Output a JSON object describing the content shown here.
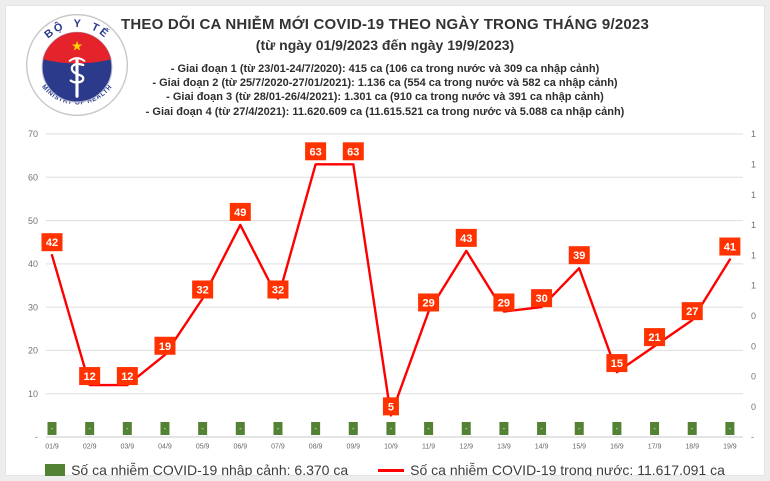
{
  "header": {
    "title": "THEO DÕI CA NHIỄM MỚI COVID-19 THEO NGÀY TRONG THÁNG 9/2023",
    "subtitle": "(từ ngày 01/9/2023 đến ngày 19/9/2023)",
    "phases": [
      "- Giai đoạn 1 (từ 23/01-24/7/2020): 415 ca (106 ca trong nước và 309 ca nhập cảnh)",
      "- Giai đoạn 2 (từ 25/7/2020-27/01/2021): 1.136 ca (554 ca trong nước và 582 ca nhập cảnh)",
      "- Giai đoạn 3 (từ 28/01-26/4/2021): 1.301 ca (910 ca trong nước và 391 ca nhập cảnh)",
      "- Giai đoạn 4 (từ 27/4/2021): 11.620.609 ca (11.615.521 ca trong nước và 5.088 ca nhập cảnh)"
    ]
  },
  "logo": {
    "top_text": "BỘ Y TẾ",
    "bottom_text": "MINISTRY OF HEALTH",
    "colors": {
      "blue": "#2c3a8c",
      "red": "#e4232b",
      "star_yellow": "#ffd200"
    }
  },
  "chart_data": {
    "type": "line",
    "title": "THEO DÕI CA NHIỄM MỚI COVID-19 THEO NGÀY TRONG THÁNG 9/2023",
    "categories": [
      "01/9",
      "02/9",
      "03/9",
      "04/9",
      "05/9",
      "06/9",
      "07/9",
      "08/9",
      "09/9",
      "10/9",
      "11/9",
      "12/9",
      "13/9",
      "14/9",
      "15/9",
      "16/9",
      "17/9",
      "18/9",
      "19/9"
    ],
    "series": [
      {
        "name": "Số ca nhiễm COVID-19 trong nước",
        "type": "line",
        "color": "#ff0000",
        "label_bg": "#ff3200",
        "label_text_color": "#ffffff",
        "values": [
          42,
          12,
          12,
          19,
          32,
          49,
          32,
          63,
          63,
          5,
          29,
          43,
          29,
          30,
          39,
          15,
          21,
          27,
          41
        ]
      },
      {
        "name": "Số ca nhiễm COVID-19 nhập cảnh",
        "type": "bar",
        "color": "#548235",
        "values": [
          0,
          0,
          0,
          0,
          0,
          0,
          0,
          0,
          0,
          0,
          0,
          0,
          0,
          0,
          0,
          0,
          0,
          0,
          0
        ],
        "value_labels": [
          "-",
          "-",
          "-",
          "-",
          "-",
          "-",
          "-",
          "-",
          "-",
          "-",
          "-",
          "-",
          "-",
          "-",
          "-",
          "-",
          "-",
          "-",
          "-"
        ]
      }
    ],
    "left_axis": {
      "min": 0,
      "max": 70,
      "step": 10,
      "labels_bottom_to_top": [
        "-",
        "10",
        "20",
        "30",
        "40",
        "50",
        "60",
        "70"
      ]
    },
    "right_axis": {
      "min": 0,
      "max": 1,
      "step": 0.1,
      "labels_bottom_to_top": [
        "-",
        "0",
        "0",
        "0",
        "0",
        "1",
        "1",
        "1",
        "1",
        "1",
        "1"
      ]
    },
    "grid": true,
    "legend_position": "bottom",
    "axis_text_color": "#737373",
    "grid_color": "#dedede"
  },
  "legend": {
    "items": [
      {
        "swatch": "square",
        "color": "#548235",
        "label": "Số ca nhiễm COVID-19 nhập cảnh: 6.370 ca"
      },
      {
        "swatch": "line",
        "color": "#ff0000",
        "label": "Số ca nhiễm COVID-19 trong nước: 11.617.091 ca"
      }
    ]
  }
}
